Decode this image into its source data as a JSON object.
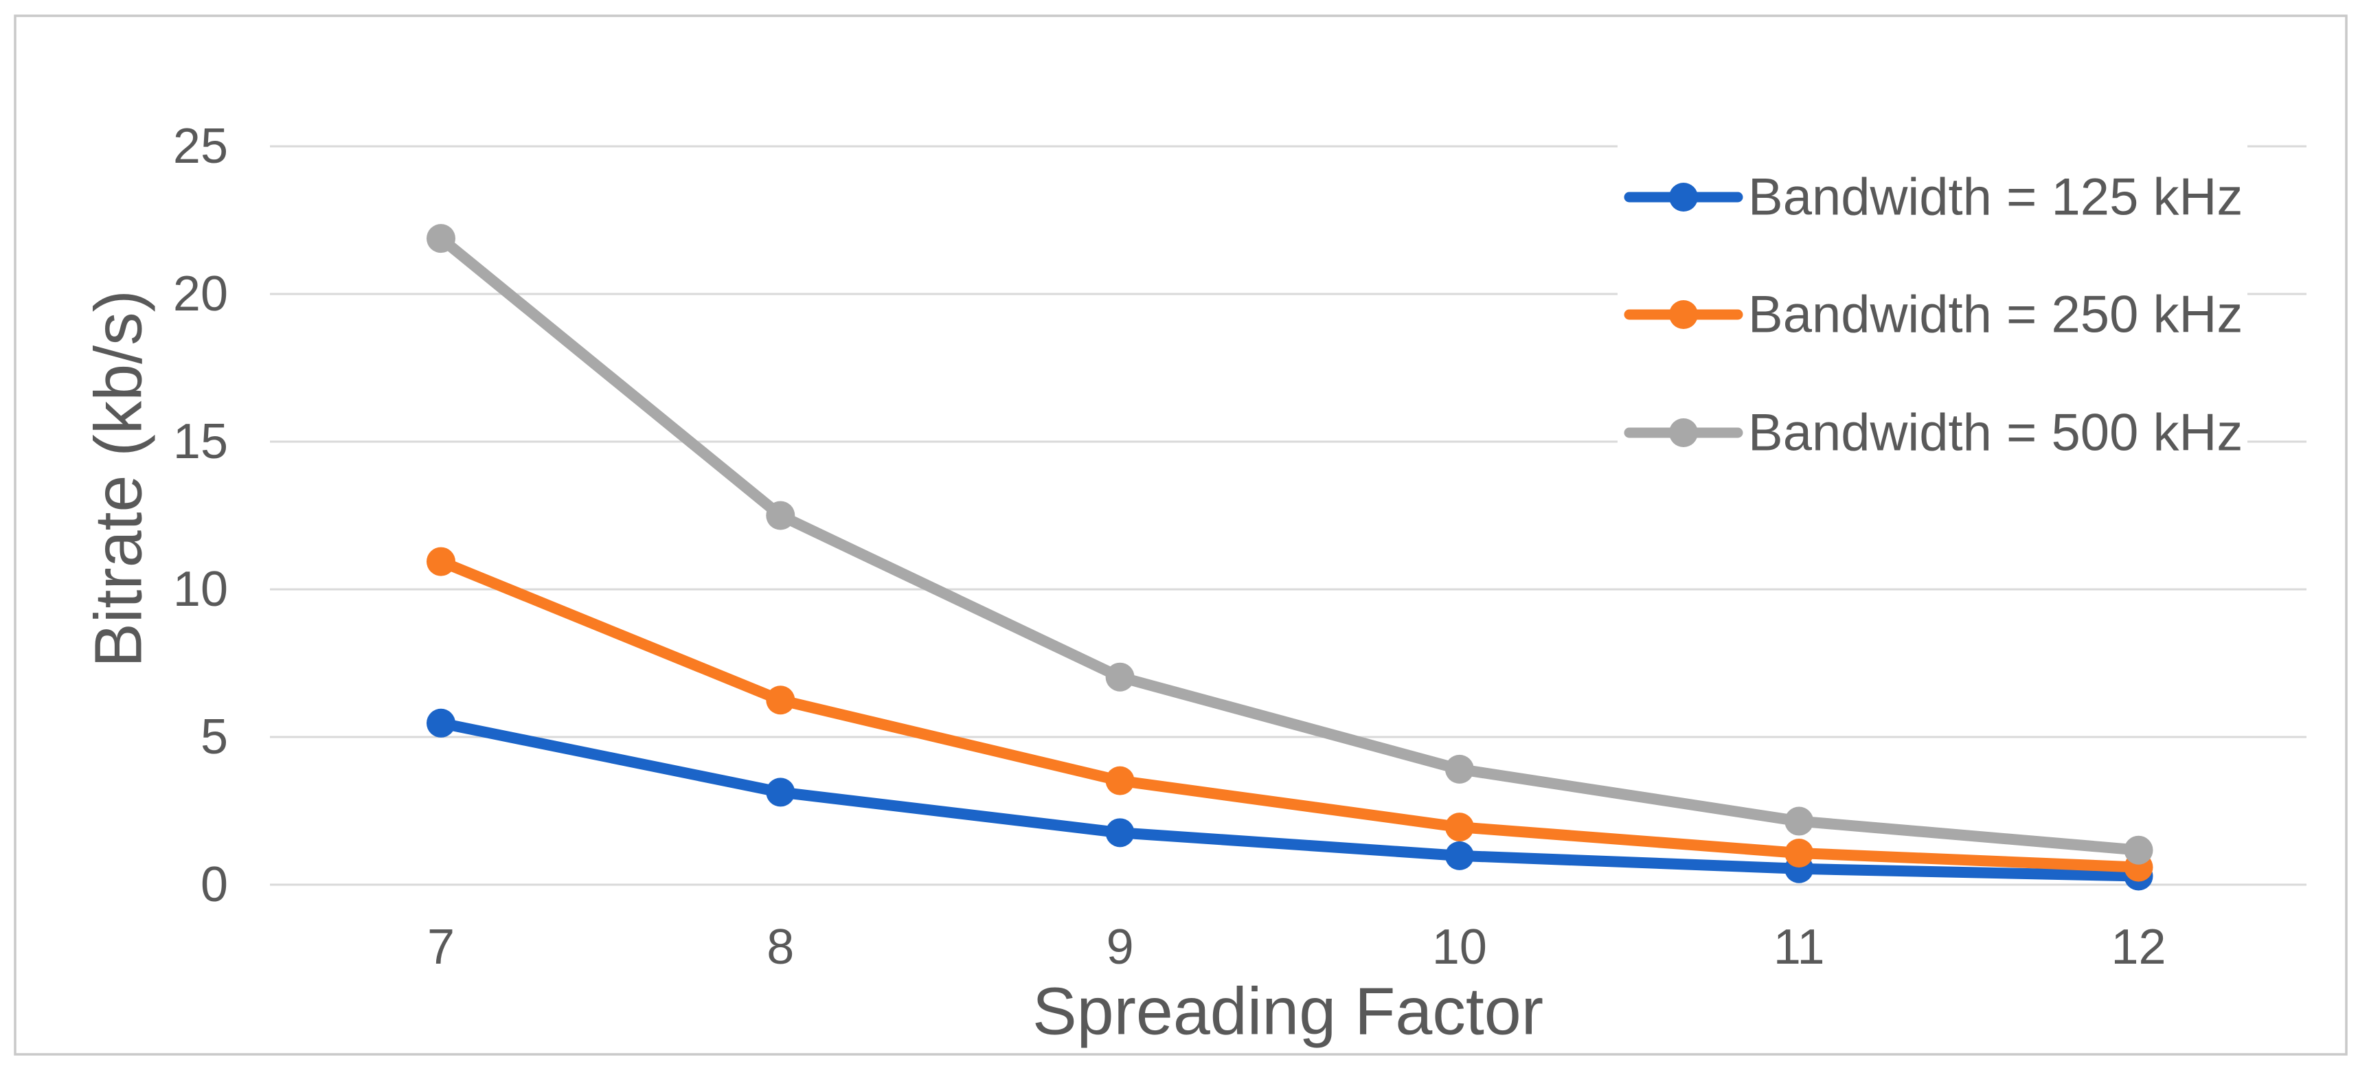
{
  "chart_data": {
    "type": "line",
    "title": "",
    "xlabel": "Spreading Factor",
    "ylabel": "Bitrate (kb/s)",
    "categories": [
      "7",
      "8",
      "9",
      "10",
      "11",
      "12"
    ],
    "yticks": [
      "0",
      "5",
      "10",
      "15",
      "20",
      "25"
    ],
    "ylim": [
      0,
      25
    ],
    "ytick_step": 5,
    "grid": "horizontal-only",
    "legend_position": "top-right",
    "series": [
      {
        "name": "Bandwidth = 125 kHz",
        "color": "#1B64C8",
        "values": [
          5.47,
          3.13,
          1.76,
          0.98,
          0.54,
          0.29
        ]
      },
      {
        "name": "Bandwidth = 250 kHz",
        "color": "#F97B22",
        "values": [
          10.94,
          6.25,
          3.52,
          1.95,
          1.07,
          0.59
        ]
      },
      {
        "name": "Bandwidth = 500 kHz",
        "color": "#A8A8A8",
        "values": [
          21.88,
          12.5,
          7.03,
          3.91,
          2.15,
          1.17
        ]
      }
    ]
  },
  "colors": {
    "gridline": "#D9D9D9",
    "frame_border": "#C9C9C9",
    "text": "#595959",
    "background": "#FFFFFF"
  }
}
